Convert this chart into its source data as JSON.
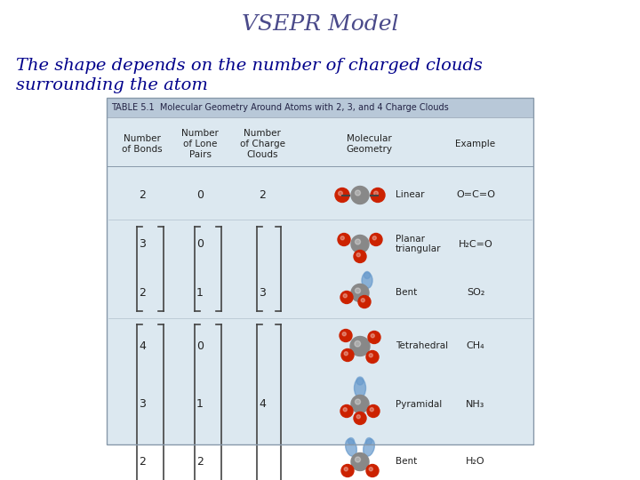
{
  "title": "VSEPR Model",
  "subtitle": "The shape depends on the number of charged clouds\nsurrounding the atom",
  "title_color": "#4a4a8a",
  "subtitle_color": "#00008B",
  "bg_color": "#ffffff",
  "table_header_bg": "#b8c8d8",
  "table_body_bg": "#dce8f0",
  "table_border_color": "#8899aa",
  "table_title": "TABLE 5.1  Molecular Geometry Around Atoms with 2, 3, and 4 Charge Clouds",
  "col_headers": [
    "Number\nof Bonds",
    "Number\nof Lone\nPairs",
    "Number\nof Charge\nClouds",
    "Molecular\nGeometry",
    "Example"
  ],
  "rows": [
    {
      "bonds": "2",
      "lone": "0",
      "clouds": "2",
      "geometry": "Linear",
      "example": "O=C=O"
    },
    {
      "bonds": "3",
      "lone": "0",
      "clouds": "",
      "geometry": "Planar\ntriangular",
      "example": "H₂C=O"
    },
    {
      "bonds": "2",
      "lone": "1",
      "clouds": "3",
      "geometry": "Bent",
      "example": "SO₂"
    },
    {
      "bonds": "4",
      "lone": "0",
      "clouds": "",
      "geometry": "Tetrahedral",
      "example": "CH₄"
    },
    {
      "bonds": "3",
      "lone": "1",
      "clouds": "4",
      "geometry": "Pyramidal",
      "example": "NH₃"
    },
    {
      "bonds": "2",
      "lone": "2",
      "clouds": "",
      "geometry": "Bent",
      "example": "H₂O"
    }
  ],
  "title_fontsize": 18,
  "subtitle_fontsize": 14,
  "table_title_fontsize": 7,
  "cell_fontsize": 8
}
